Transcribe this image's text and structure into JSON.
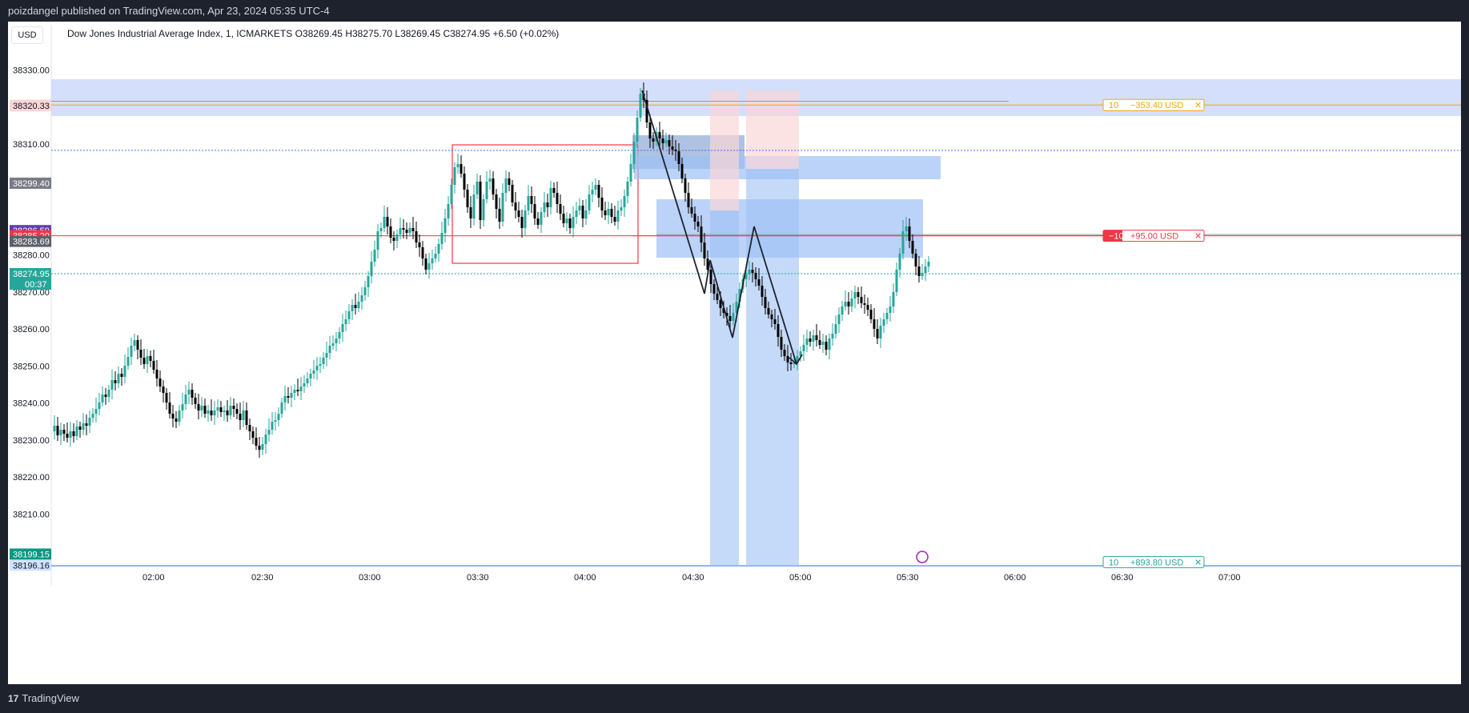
{
  "header": {
    "published": "poizdangel published on TradingView.com, Apr 23, 2024 05:35 UTC-4"
  },
  "footer": {
    "brand": "TradingView"
  },
  "toolbar": {
    "currency": "USD"
  },
  "legend": {
    "symbol": "Dow Jones Industrial Average Index, 1, ICMARKETS",
    "open": "O38269.45",
    "high": "H38275.70",
    "low": "L38269.45",
    "close": "C38274.95",
    "change": "+6.50 (+0.02%)"
  },
  "colors": {
    "up": "#26a69a",
    "down": "#000000",
    "accent_red": "#f23645",
    "accent_orange": "#f7a600",
    "zone_blue": "#90b8f0"
  },
  "chart_data": {
    "type": "candlestick",
    "x_tick_labels": [
      "02:00",
      "02:30",
      "03:00",
      "03:30",
      "04:00",
      "04:30",
      "05:00",
      "05:30",
      "06:00",
      "06:30",
      "07:00"
    ],
    "y_tick_labels": [
      "38330.00",
      "38310.00",
      "38280.00",
      "38270.00",
      "38260.00",
      "38250.00",
      "38240.00",
      "38230.00",
      "38220.00",
      "38210.00"
    ],
    "ylim": [
      38196,
      38334
    ],
    "price_labels": [
      {
        "value": "38320.54",
        "price": 38320.54,
        "color": "#f7a600",
        "bg": "#fff8e6"
      },
      {
        "value": "38320.47",
        "price": 38320.47,
        "color": "#131722",
        "bg": "#f9d5d7"
      },
      {
        "value": "38320.33",
        "price": 38320.33,
        "color": "#131722",
        "bg": "#f9d5d7"
      },
      {
        "value": "38299.40",
        "price": 38299.4,
        "color": "#ffffff",
        "bg": "#787b86"
      },
      {
        "value": "38286.59",
        "price": 38286.59,
        "color": "#ffffff",
        "bg": "#673ab7"
      },
      {
        "value": "38285.20",
        "price": 38285.2,
        "color": "#ffffff",
        "bg": "#f23645"
      },
      {
        "value": "38283.69",
        "price": 38283.69,
        "color": "#ffffff",
        "bg": "#5d606b"
      },
      {
        "value": "38274.95",
        "price": 38274.95,
        "color": "#ffffff",
        "bg": "#26a69a"
      },
      {
        "value": "38199.15",
        "price": 38199.15,
        "color": "#ffffff",
        "bg": "#089981"
      },
      {
        "value": "38196.16",
        "price": 38196.16,
        "color": "#131722",
        "bg": "#cfe2ff"
      }
    ],
    "countdown": "00:37",
    "positions": [
      {
        "qty": "10",
        "pnl": "−353.40 USD",
        "close": "✕",
        "price": 38320.54,
        "color": "#f7a600"
      },
      {
        "qty": "−10",
        "pnl": "+95.00 USD",
        "close": "✕",
        "price": 38285.2,
        "color": "#f23645"
      },
      {
        "qty": "10",
        "pnl": "+893.80 USD",
        "close": "✕",
        "price": 38197.0,
        "color": "#26a69a"
      }
    ]
  }
}
